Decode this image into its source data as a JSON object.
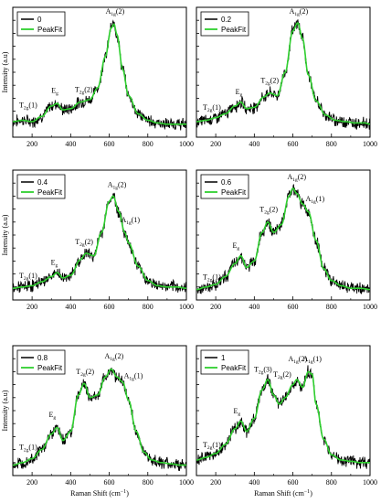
{
  "colors": {
    "measured": "#000000",
    "fit": "#2fd02f",
    "frame": "#000000"
  },
  "shared": {
    "xlabel": "Raman Shift (cm",
    "xlabel_sup": "−1",
    "xlabel_close": ")",
    "ylabel": "Intensity (a.u)",
    "fit_label": "PeakFit",
    "xlim": [
      100,
      1000
    ],
    "xticks": [
      200,
      400,
      600,
      800,
      1000
    ],
    "grid": false
  },
  "chart_data": [
    {
      "type": "line",
      "legend": "0",
      "series": [
        {
          "name": "0",
          "x": [
            100,
            150,
            200,
            250,
            300,
            330,
            360,
            400,
            450,
            500,
            540,
            580,
            610,
            625,
            640,
            670,
            700,
            750,
            800,
            850,
            900,
            950,
            1000
          ],
          "y": [
            0.12,
            0.13,
            0.12,
            0.16,
            0.24,
            0.26,
            0.21,
            0.22,
            0.27,
            0.29,
            0.38,
            0.62,
            0.84,
            0.87,
            0.79,
            0.52,
            0.32,
            0.18,
            0.13,
            0.11,
            0.1,
            0.1,
            0.1
          ]
        },
        {
          "name": "PeakFit",
          "x": [
            100,
            150,
            200,
            250,
            300,
            330,
            360,
            400,
            450,
            500,
            540,
            580,
            610,
            625,
            640,
            670,
            700,
            750,
            800,
            850,
            900,
            950,
            1000
          ],
          "y": [
            0.12,
            0.13,
            0.12,
            0.16,
            0.24,
            0.26,
            0.21,
            0.22,
            0.27,
            0.29,
            0.38,
            0.62,
            0.84,
            0.87,
            0.79,
            0.52,
            0.32,
            0.18,
            0.13,
            0.11,
            0.1,
            0.1,
            0.1
          ]
        }
      ],
      "annotations": [
        {
          "main": "T",
          "sub": "2g",
          "tail": "(1)",
          "x": 180,
          "y": 0.23
        },
        {
          "main": "E",
          "sub": "g",
          "tail": "",
          "x": 318,
          "y": 0.34
        },
        {
          "main": "T",
          "sub": "2g",
          "tail": "(2)",
          "x": 468,
          "y": 0.35
        },
        {
          "main": "A",
          "sub": "1g",
          "tail": "(2)",
          "x": 630,
          "y": 0.95
        }
      ]
    },
    {
      "type": "line",
      "legend": "0.2",
      "series": [
        {
          "name": "0.2",
          "x": [
            100,
            150,
            200,
            250,
            300,
            330,
            360,
            400,
            450,
            480,
            520,
            560,
            600,
            625,
            650,
            680,
            720,
            770,
            820,
            870,
            920,
            970,
            1000
          ],
          "y": [
            0.12,
            0.13,
            0.15,
            0.18,
            0.24,
            0.27,
            0.22,
            0.23,
            0.31,
            0.34,
            0.32,
            0.5,
            0.82,
            0.88,
            0.76,
            0.48,
            0.28,
            0.17,
            0.13,
            0.12,
            0.11,
            0.11,
            0.1
          ]
        },
        {
          "name": "PeakFit",
          "x": [
            100,
            150,
            200,
            250,
            300,
            330,
            360,
            400,
            450,
            480,
            520,
            560,
            600,
            625,
            650,
            680,
            720,
            770,
            820,
            870,
            920,
            970,
            1000
          ],
          "y": [
            0.12,
            0.13,
            0.15,
            0.18,
            0.24,
            0.27,
            0.22,
            0.23,
            0.31,
            0.34,
            0.32,
            0.5,
            0.82,
            0.88,
            0.76,
            0.48,
            0.28,
            0.17,
            0.13,
            0.12,
            0.11,
            0.11,
            0.1
          ]
        }
      ],
      "annotations": [
        {
          "main": "T",
          "sub": "2g",
          "tail": "(1)",
          "x": 180,
          "y": 0.21
        },
        {
          "main": "E",
          "sub": "g",
          "tail": "",
          "x": 320,
          "y": 0.33
        },
        {
          "main": "T",
          "sub": "2g",
          "tail": "(2)",
          "x": 480,
          "y": 0.42
        },
        {
          "main": "A",
          "sub": "1g",
          "tail": "(2)",
          "x": 630,
          "y": 0.95
        }
      ]
    },
    {
      "type": "line",
      "legend": "0.4",
      "series": [
        {
          "name": "0.4",
          "x": [
            100,
            150,
            200,
            250,
            300,
            330,
            360,
            400,
            450,
            480,
            520,
            560,
            600,
            620,
            650,
            680,
            700,
            750,
            800,
            850,
            900,
            950,
            1000
          ],
          "y": [
            0.09,
            0.1,
            0.11,
            0.14,
            0.18,
            0.21,
            0.17,
            0.19,
            0.31,
            0.36,
            0.34,
            0.52,
            0.76,
            0.8,
            0.68,
            0.52,
            0.44,
            0.26,
            0.15,
            0.11,
            0.1,
            0.1,
            0.09
          ]
        },
        {
          "name": "PeakFit",
          "x": [
            100,
            150,
            200,
            250,
            300,
            330,
            360,
            400,
            450,
            480,
            520,
            560,
            600,
            620,
            650,
            680,
            700,
            750,
            800,
            850,
            900,
            950,
            1000
          ],
          "y": [
            0.09,
            0.1,
            0.11,
            0.14,
            0.18,
            0.21,
            0.17,
            0.19,
            0.31,
            0.36,
            0.34,
            0.52,
            0.76,
            0.8,
            0.68,
            0.52,
            0.44,
            0.26,
            0.15,
            0.11,
            0.1,
            0.1,
            0.09
          ]
        }
      ],
      "annotations": [
        {
          "main": "T",
          "sub": "2g",
          "tail": "(1)",
          "x": 180,
          "y": 0.17
        },
        {
          "main": "E",
          "sub": "g",
          "tail": "",
          "x": 315,
          "y": 0.27
        },
        {
          "main": "T",
          "sub": "2g",
          "tail": "(2)",
          "x": 470,
          "y": 0.43
        },
        {
          "main": "A",
          "sub": "1g",
          "tail": "(2)",
          "x": 640,
          "y": 0.87
        },
        {
          "main": "A",
          "sub": "1g",
          "tail": "(1)",
          "x": 710,
          "y": 0.6
        }
      ]
    },
    {
      "type": "line",
      "legend": "0.6",
      "series": [
        {
          "name": "0.6",
          "x": [
            100,
            150,
            200,
            250,
            300,
            330,
            360,
            400,
            440,
            470,
            500,
            540,
            580,
            600,
            620,
            650,
            680,
            720,
            760,
            800,
            850,
            900,
            950,
            1000
          ],
          "y": [
            0.08,
            0.1,
            0.12,
            0.18,
            0.28,
            0.34,
            0.25,
            0.3,
            0.52,
            0.6,
            0.52,
            0.58,
            0.8,
            0.86,
            0.82,
            0.74,
            0.68,
            0.46,
            0.24,
            0.15,
            0.11,
            0.09,
            0.09,
            0.08
          ]
        },
        {
          "name": "PeakFit",
          "x": [
            100,
            150,
            200,
            250,
            300,
            330,
            360,
            400,
            440,
            470,
            500,
            540,
            580,
            600,
            620,
            650,
            680,
            720,
            760,
            800,
            850,
            900,
            950,
            1000
          ],
          "y": [
            0.08,
            0.1,
            0.12,
            0.18,
            0.28,
            0.34,
            0.25,
            0.3,
            0.52,
            0.6,
            0.52,
            0.58,
            0.8,
            0.86,
            0.82,
            0.74,
            0.68,
            0.46,
            0.24,
            0.15,
            0.11,
            0.09,
            0.09,
            0.08
          ]
        }
      ],
      "annotations": [
        {
          "main": "T",
          "sub": "2g",
          "tail": "(1)",
          "x": 180,
          "y": 0.16
        },
        {
          "main": "E",
          "sub": "g",
          "tail": "",
          "x": 305,
          "y": 0.4
        },
        {
          "main": "T",
          "sub": "2g",
          "tail": "(2)",
          "x": 475,
          "y": 0.68
        },
        {
          "main": "A",
          "sub": "1g",
          "tail": "(2)",
          "x": 620,
          "y": 0.93
        },
        {
          "main": "A",
          "sub": "1g",
          "tail": "(1)",
          "x": 715,
          "y": 0.76
        }
      ]
    },
    {
      "type": "line",
      "legend": "0.8",
      "series": [
        {
          "name": "0.8",
          "x": [
            100,
            150,
            200,
            250,
            300,
            330,
            360,
            400,
            440,
            470,
            500,
            540,
            580,
            610,
            640,
            670,
            700,
            740,
            780,
            820,
            870,
            920,
            970,
            1000
          ],
          "y": [
            0.08,
            0.1,
            0.13,
            0.2,
            0.32,
            0.37,
            0.27,
            0.34,
            0.62,
            0.71,
            0.6,
            0.62,
            0.76,
            0.82,
            0.76,
            0.72,
            0.58,
            0.34,
            0.18,
            0.12,
            0.1,
            0.09,
            0.08,
            0.08
          ]
        },
        {
          "name": "PeakFit",
          "x": [
            100,
            150,
            200,
            250,
            300,
            330,
            360,
            400,
            440,
            470,
            500,
            540,
            580,
            610,
            640,
            670,
            700,
            740,
            780,
            820,
            870,
            920,
            970,
            1000
          ],
          "y": [
            0.08,
            0.1,
            0.13,
            0.2,
            0.32,
            0.37,
            0.27,
            0.34,
            0.62,
            0.71,
            0.6,
            0.62,
            0.76,
            0.82,
            0.76,
            0.72,
            0.58,
            0.34,
            0.18,
            0.12,
            0.1,
            0.09,
            0.08,
            0.08
          ]
        }
      ],
      "annotations": [
        {
          "main": "T",
          "sub": "2g",
          "tail": "(1)",
          "x": 180,
          "y": 0.2
        },
        {
          "main": "E",
          "sub": "g",
          "tail": "",
          "x": 305,
          "y": 0.45
        },
        {
          "main": "T",
          "sub": "2g",
          "tail": "(2)",
          "x": 475,
          "y": 0.78
        },
        {
          "main": "A",
          "sub": "1g",
          "tail": "(2)",
          "x": 625,
          "y": 0.9
        },
        {
          "main": "A",
          "sub": "1g",
          "tail": "(1)",
          "x": 725,
          "y": 0.75
        }
      ]
    },
    {
      "type": "line",
      "legend": "1",
      "series": [
        {
          "name": "1",
          "x": [
            100,
            150,
            200,
            250,
            300,
            330,
            360,
            400,
            440,
            470,
            500,
            530,
            560,
            600,
            620,
            650,
            680,
            700,
            720,
            760,
            800,
            850,
            900,
            950,
            1000
          ],
          "y": [
            0.12,
            0.14,
            0.17,
            0.24,
            0.36,
            0.42,
            0.34,
            0.44,
            0.66,
            0.74,
            0.62,
            0.55,
            0.6,
            0.7,
            0.74,
            0.68,
            0.8,
            0.78,
            0.55,
            0.28,
            0.16,
            0.12,
            0.11,
            0.1,
            0.1
          ]
        },
        {
          "name": "PeakFit",
          "x": [
            100,
            150,
            200,
            250,
            300,
            330,
            360,
            400,
            440,
            470,
            500,
            530,
            560,
            600,
            620,
            650,
            680,
            700,
            720,
            760,
            800,
            850,
            900,
            950,
            1000
          ],
          "y": [
            0.12,
            0.14,
            0.17,
            0.24,
            0.36,
            0.42,
            0.34,
            0.44,
            0.66,
            0.74,
            0.62,
            0.55,
            0.6,
            0.7,
            0.74,
            0.68,
            0.8,
            0.78,
            0.55,
            0.28,
            0.16,
            0.12,
            0.11,
            0.1,
            0.1
          ]
        }
      ],
      "annotations": [
        {
          "main": "T",
          "sub": "2g",
          "tail": "(1)",
          "x": 180,
          "y": 0.22
        },
        {
          "main": "E",
          "sub": "g",
          "tail": "",
          "x": 310,
          "y": 0.48
        },
        {
          "main": "T",
          "sub": "2g",
          "tail": "(3)",
          "x": 445,
          "y": 0.8
        },
        {
          "main": "T",
          "sub": "2g",
          "tail": "(2)",
          "x": 545,
          "y": 0.76
        },
        {
          "main": "A",
          "sub": "1g",
          "tail": "(2)",
          "x": 625,
          "y": 0.88
        },
        {
          "main": "A",
          "sub": "1g",
          "tail": "(1)",
          "x": 700,
          "y": 0.88
        }
      ]
    }
  ]
}
